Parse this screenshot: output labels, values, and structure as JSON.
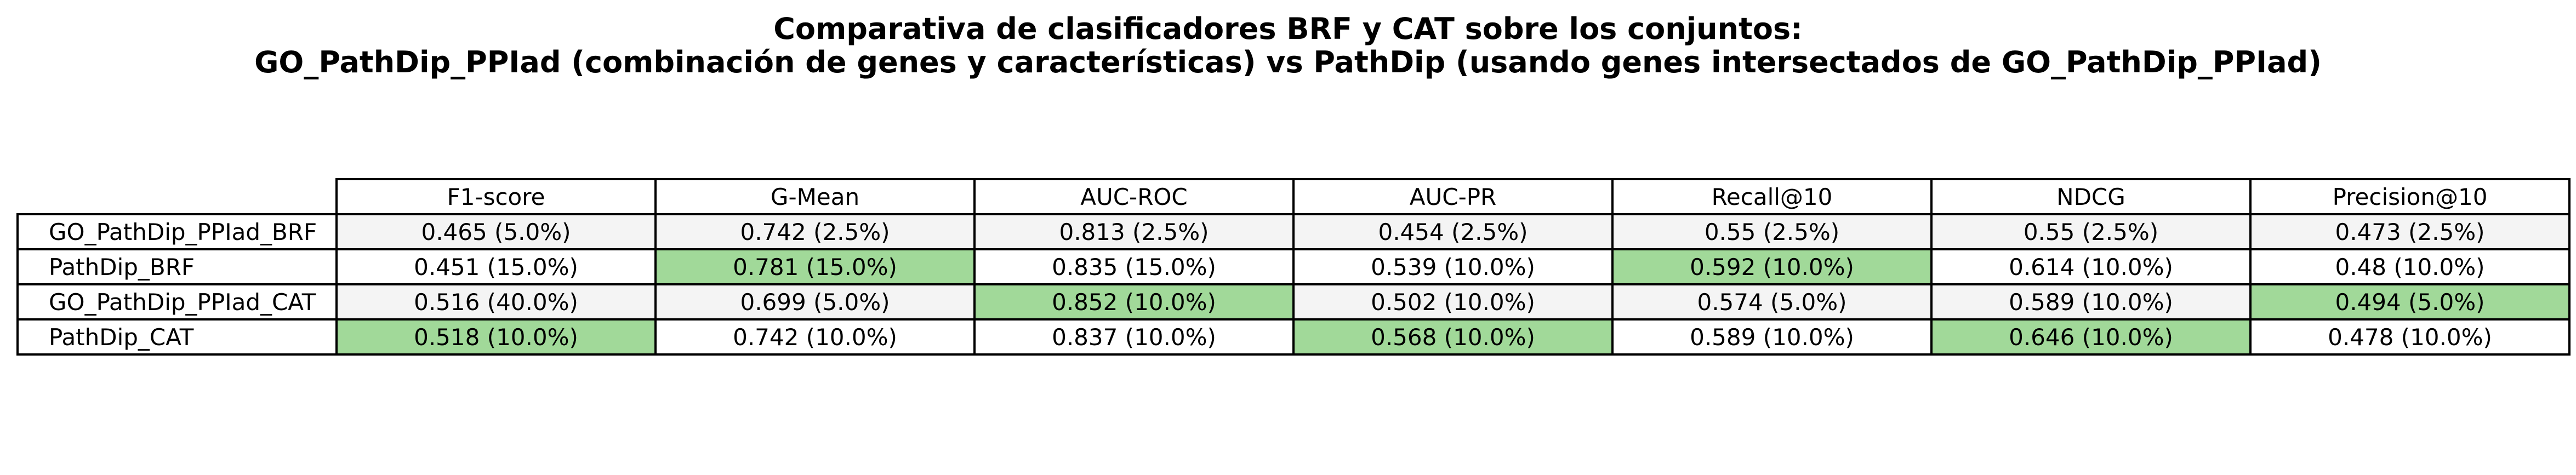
{
  "title": {
    "line1": "Comparativa de clasificadores BRF y CAT sobre los conjuntos:",
    "line2": "GO_PathDip_PPIad (combinación de genes y características) vs PathDip (usando genes intersectados de GO_PathDip_PPIad)"
  },
  "colors": {
    "highlight": "#a1d999",
    "shaded_row": "#f4f4f4",
    "border": "#000000"
  },
  "chart_data": {
    "type": "table",
    "columns": [
      "F1-score",
      "G-Mean",
      "AUC-ROC",
      "AUC-PR",
      "Recall@10",
      "NDCG",
      "Precision@10"
    ],
    "rows": [
      {
        "label": "GO_PathDip_PPIad_BRF",
        "cells": [
          "0.465 (5.0%)",
          "0.742 (2.5%)",
          "0.813 (2.5%)",
          "0.454 (2.5%)",
          "0.55 (2.5%)",
          "0.55 (2.5%)",
          "0.473 (2.5%)"
        ],
        "highlight": [
          false,
          false,
          false,
          false,
          false,
          false,
          false
        ]
      },
      {
        "label": "PathDip_BRF",
        "cells": [
          "0.451 (15.0%)",
          "0.781 (15.0%)",
          "0.835 (15.0%)",
          "0.539 (10.0%)",
          "0.592 (10.0%)",
          "0.614 (10.0%)",
          "0.48 (10.0%)"
        ],
        "highlight": [
          false,
          true,
          false,
          false,
          true,
          false,
          false
        ]
      },
      {
        "label": "GO_PathDip_PPIad_CAT",
        "cells": [
          "0.516 (40.0%)",
          "0.699 (5.0%)",
          "0.852 (10.0%)",
          "0.502 (10.0%)",
          "0.574 (5.0%)",
          "0.589 (10.0%)",
          "0.494 (5.0%)"
        ],
        "highlight": [
          false,
          false,
          true,
          false,
          false,
          false,
          true
        ]
      },
      {
        "label": "PathDip_CAT",
        "cells": [
          "0.518 (10.0%)",
          "0.742 (10.0%)",
          "0.837 (10.0%)",
          "0.568 (10.0%)",
          "0.589 (10.0%)",
          "0.646 (10.0%)",
          "0.478 (10.0%)"
        ],
        "highlight": [
          true,
          false,
          false,
          true,
          false,
          true,
          false
        ]
      }
    ]
  }
}
